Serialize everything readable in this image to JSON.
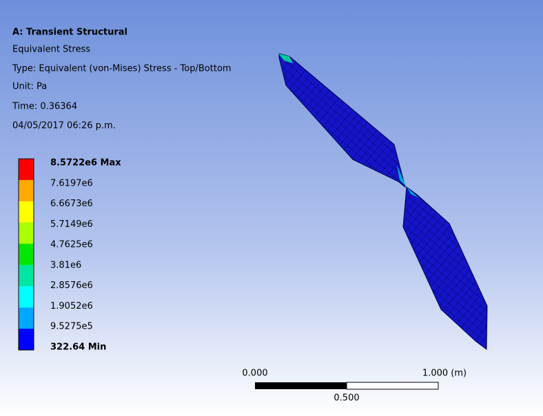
{
  "header": {
    "title": "A: Transient Structural",
    "lines": [
      "Equivalent Stress",
      "Type: Equivalent (von-Mises) Stress - Top/Bottom",
      "Unit: Pa",
      "Time: 0.36364",
      "04/05/2017 06:26 p.m."
    ]
  },
  "legend": {
    "labels": [
      "8.5722e6 Max",
      "7.6197e6",
      "6.6673e6",
      "5.7149e6",
      "4.7625e6",
      "3.81e6",
      "2.8576e6",
      "1.9052e6",
      "9.5275e5",
      "322.64 Min"
    ],
    "colors": [
      "#ff0000",
      "#ffaa00",
      "#ffff00",
      "#aaff00",
      "#00e600",
      "#00e6a0",
      "#00ffff",
      "#00a8ff",
      "#0000ff"
    ]
  },
  "scale_bar": {
    "start": "0.000",
    "end": "1.000 (m)",
    "middle": "0.500"
  }
}
